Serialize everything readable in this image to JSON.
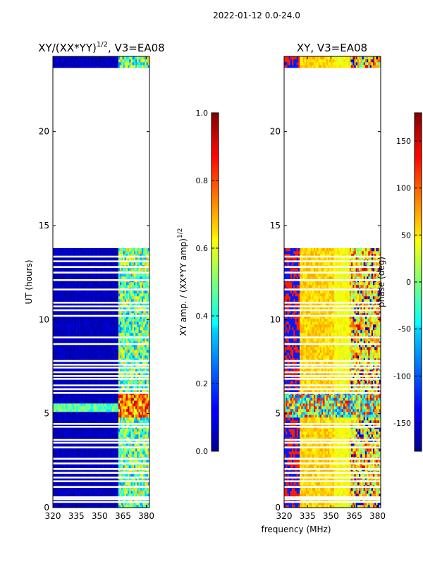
{
  "suptitle": "2022-01-12 0.0-24.0",
  "chart_data": [
    {
      "type": "heatmap",
      "title": "XY/(XX*YY)",
      "title_exponent": "1/2",
      "title_suffix": ", V3=EA08",
      "xlabel": "",
      "ylabel": "UT (hours)",
      "xlim": [
        320,
        382
      ],
      "ylim": [
        0,
        24
      ],
      "xticks": [
        320,
        335,
        350,
        365,
        380
      ],
      "yticks": [
        0,
        5,
        10,
        15,
        20
      ],
      "data_blocks_hours": [
        [
          0,
          13.8
        ],
        [
          23.4,
          24
        ]
      ],
      "colorbar": {
        "label": "XY amp. / (XX*YY amp)",
        "label_exponent": "1/2",
        "range": [
          0.0,
          1.0
        ],
        "ticks": [
          "0.0",
          "0.2",
          "0.4",
          "0.6",
          "0.8",
          "1.0"
        ],
        "colormap": "jet"
      }
    },
    {
      "type": "heatmap",
      "title": "XY, V3=EA08",
      "xlabel": "frequency (MHz)",
      "ylabel": "",
      "xlim": [
        320,
        382
      ],
      "ylim": [
        0,
        24
      ],
      "xticks": [
        320,
        335,
        350,
        365,
        380
      ],
      "yticks": [
        0,
        5,
        10,
        15,
        20
      ],
      "data_blocks_hours": [
        [
          0,
          13.8
        ],
        [
          23.4,
          24
        ]
      ],
      "colorbar": {
        "label": "phase (deg)",
        "range": [
          -180,
          180
        ],
        "ticks": [
          "-150",
          "-100",
          "-50",
          "0",
          "50",
          "100",
          "150"
        ],
        "tick_values": [
          -150,
          -100,
          -50,
          0,
          50,
          100,
          150
        ],
        "colormap": "jet"
      }
    }
  ]
}
